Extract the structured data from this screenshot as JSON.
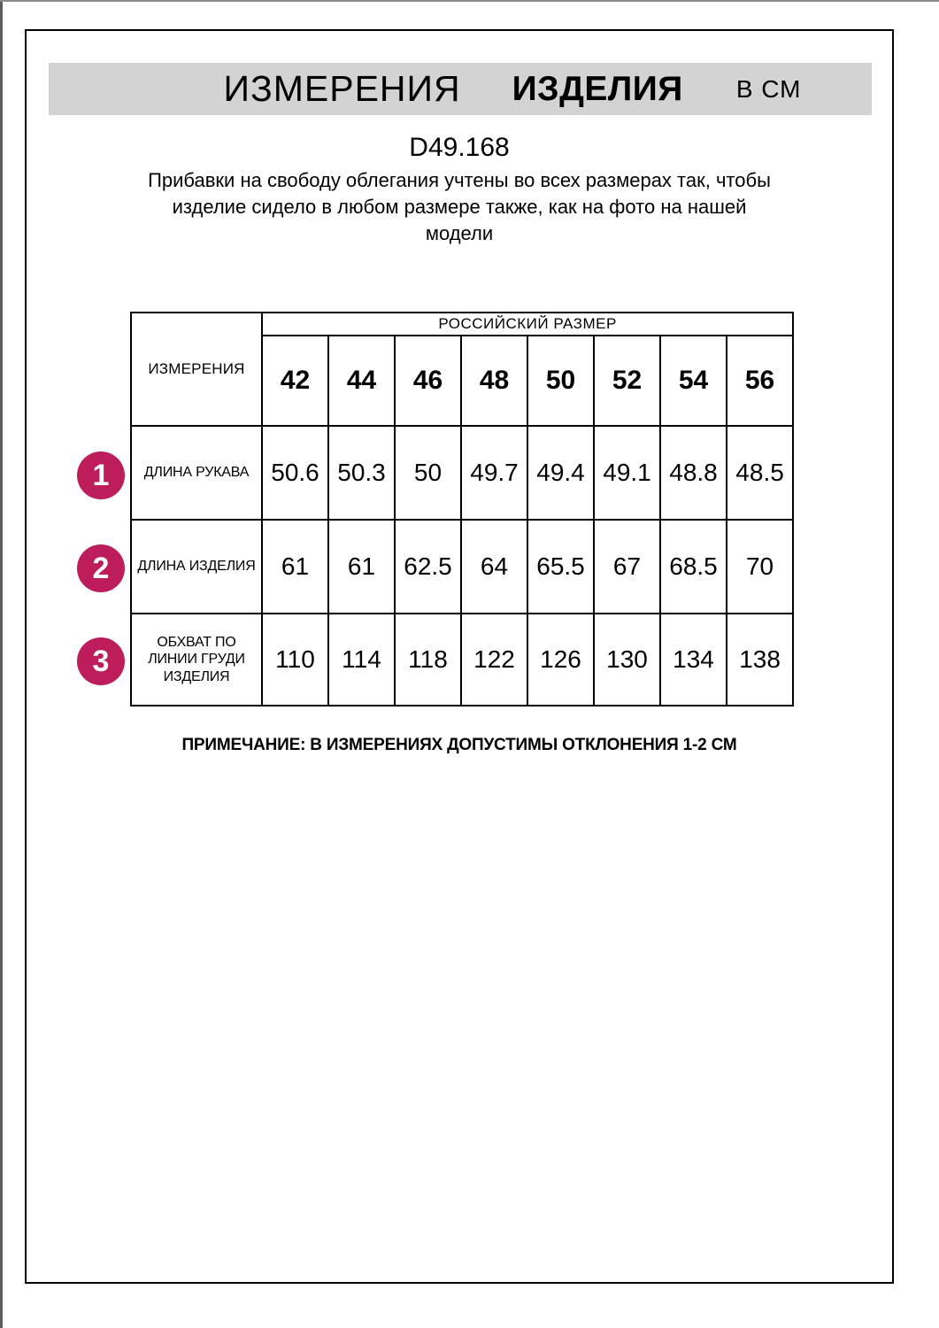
{
  "header": {
    "title_measurements": "ИЗМЕРЕНИЯ",
    "title_product": "ИЗДЕЛИЯ",
    "title_unit": "В СМ"
  },
  "product": {
    "code": "D49.168",
    "description_lines": [
      "Прибавки на свободу облегания учтены во всех размерах так, чтобы",
      "изделие сидело в любом размере также, как на фото на нашей",
      "модели"
    ]
  },
  "table": {
    "corner_header": "ИЗМЕРЕНИЯ",
    "group_header": "РОССИЙСКИЙ РАЗМЕР",
    "sizes": [
      "42",
      "44",
      "46",
      "48",
      "50",
      "52",
      "54",
      "56"
    ],
    "rows": [
      {
        "num": "1",
        "label": "ДЛИНА РУКАВА",
        "values": [
          "50.6",
          "50.3",
          "50",
          "49.7",
          "49.4",
          "49.1",
          "48.8",
          "48.5"
        ]
      },
      {
        "num": "2",
        "label": "ДЛИНА ИЗДЕЛИЯ",
        "values": [
          "61",
          "61",
          "62.5",
          "64",
          "65.5",
          "67",
          "68.5",
          "70"
        ]
      },
      {
        "num": "3",
        "label": "ОБХВАТ ПО ЛИНИИ ГРУДИ ИЗДЕЛИЯ",
        "values": [
          "110",
          "114",
          "118",
          "122",
          "126",
          "130",
          "134",
          "138"
        ]
      }
    ]
  },
  "note": "ПРИМЕЧАНИЕ: В ИЗМЕРЕНИЯХ ДОПУСТИМЫ ОТКЛОНЕНИЯ 1-2 СМ",
  "colors": {
    "badge": "#bd1d5a",
    "title_bar_bg": "#d3d3d3",
    "border": "#000000"
  }
}
